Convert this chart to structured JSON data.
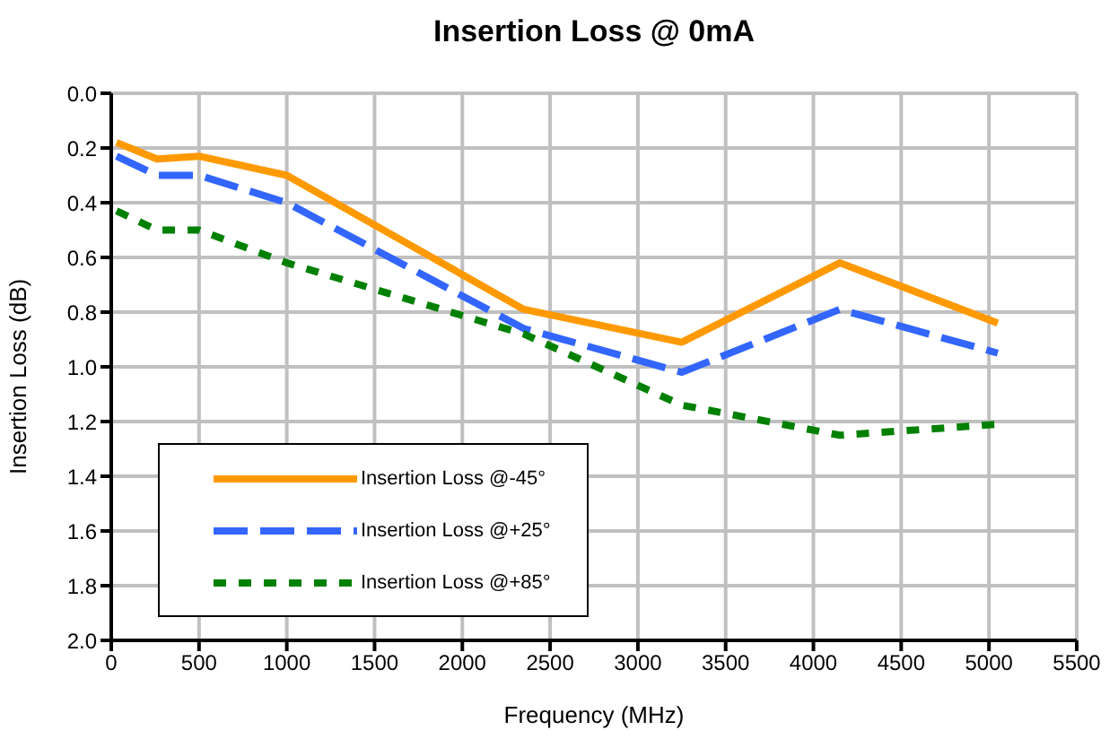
{
  "chart_data": {
    "type": "line",
    "title": "Insertion Loss @ 0mA",
    "xlabel": "Frequency (MHz)",
    "ylabel": "Insertion Loss (dB)",
    "x": [
      30,
      260,
      500,
      1000,
      2350,
      3250,
      4150,
      5050
    ],
    "series": [
      {
        "name": "Insertion Loss @-45°",
        "color": "#ff9900",
        "line_style": "solid",
        "values": [
          0.18,
          0.24,
          0.23,
          0.3,
          0.79,
          0.91,
          0.62,
          0.84
        ]
      },
      {
        "name": "Insertion Loss @+25°",
        "color": "#3366ff",
        "line_style": "dashed",
        "values": [
          0.23,
          0.3,
          0.3,
          0.4,
          0.86,
          1.02,
          0.79,
          0.95
        ]
      },
      {
        "name": "Insertion Loss @+85°",
        "color": "#008000",
        "line_style": "dotted",
        "values": [
          0.43,
          0.5,
          0.5,
          0.62,
          0.88,
          1.14,
          1.25,
          1.21
        ]
      }
    ],
    "xlim": [
      0,
      5500
    ],
    "xticks": [
      0,
      500,
      1000,
      1500,
      2000,
      2500,
      3000,
      3500,
      4000,
      4500,
      5000,
      5500
    ],
    "ylim": [
      2,
      0
    ],
    "yticks": [
      {
        "value": 0,
        "label": "0.0"
      },
      0.2,
      0.4,
      0.6,
      0.8,
      {
        "value": 1,
        "label": "1.0"
      },
      1.2,
      1.4,
      1.6,
      1.8,
      {
        "value": 2,
        "label": "2.0"
      }
    ],
    "grid": true,
    "legend": "bottom left",
    "marker": "none"
  }
}
